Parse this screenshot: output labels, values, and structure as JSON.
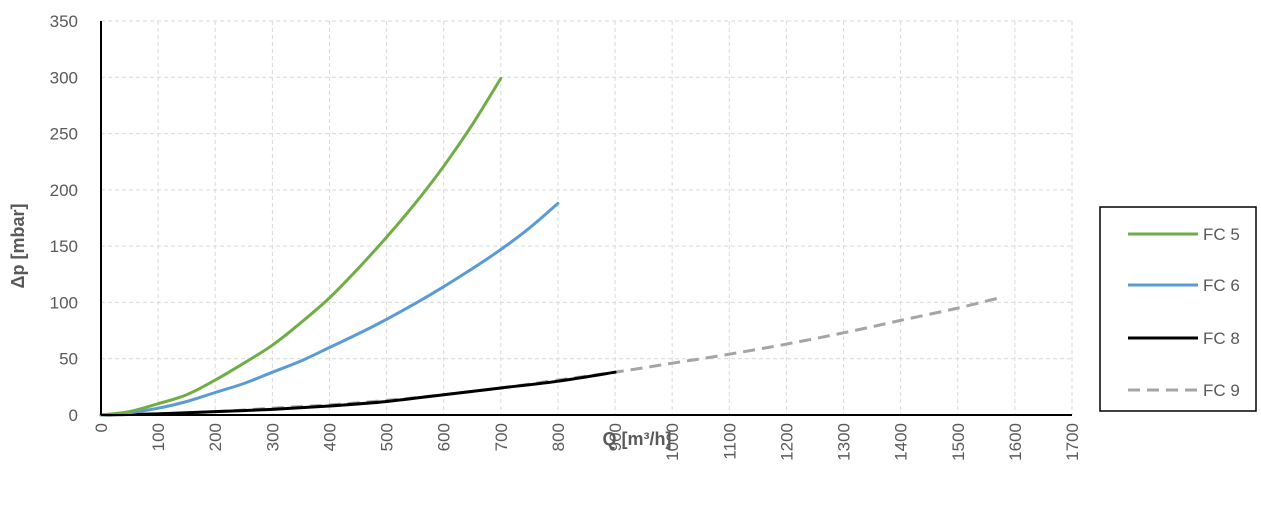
{
  "chart_data": {
    "type": "line",
    "xlabel": "Q [m³/h]",
    "ylabel": "Δp [mbar]",
    "xlim": [
      0,
      1700
    ],
    "ylim": [
      0,
      350
    ],
    "x_ticks": [
      "0",
      "100",
      "200",
      "300",
      "400",
      "500",
      "600",
      "700",
      "800",
      "900",
      "1000",
      "1100",
      "1200",
      "1300",
      "1400",
      "1500",
      "1600",
      "1700"
    ],
    "y_ticks": [
      "0",
      "50",
      "100",
      "150",
      "200",
      "250",
      "300",
      "350"
    ],
    "grid": true,
    "legend_position": "right",
    "series": [
      {
        "name": "FC 5",
        "color": "#70ad47",
        "style": "solid",
        "x": [
          0,
          50,
          100,
          150,
          200,
          250,
          300,
          350,
          400,
          450,
          500,
          550,
          600,
          650,
          700
        ],
        "y": [
          0,
          3,
          10,
          18,
          31,
          46,
          62,
          82,
          104,
          130,
          158,
          188,
          221,
          258,
          299
        ]
      },
      {
        "name": "FC 6",
        "color": "#5b9bd5",
        "style": "solid",
        "x": [
          0,
          50,
          100,
          150,
          200,
          250,
          300,
          350,
          400,
          450,
          500,
          550,
          600,
          650,
          700,
          750,
          800
        ],
        "y": [
          0,
          2,
          6,
          12,
          20,
          28,
          38,
          48,
          60,
          72,
          85,
          99,
          114,
          130,
          147,
          166,
          188
        ]
      },
      {
        "name": "FC 8",
        "color": "#000000",
        "style": "solid",
        "x": [
          0,
          100,
          200,
          300,
          400,
          500,
          600,
          700,
          800,
          900
        ],
        "y": [
          0,
          1,
          3,
          5,
          8,
          12,
          18,
          24,
          30,
          38
        ]
      },
      {
        "name": "FC 9",
        "color": "#a5a5a5",
        "style": "dashed",
        "x": [
          0,
          100,
          200,
          300,
          400,
          500,
          600,
          700,
          800,
          900,
          1000,
          1100,
          1200,
          1300,
          1400,
          1500,
          1580
        ],
        "y": [
          0,
          1,
          3,
          6,
          9,
          13,
          18,
          24,
          31,
          38,
          46,
          54,
          63,
          73,
          84,
          95,
          105
        ]
      }
    ]
  }
}
